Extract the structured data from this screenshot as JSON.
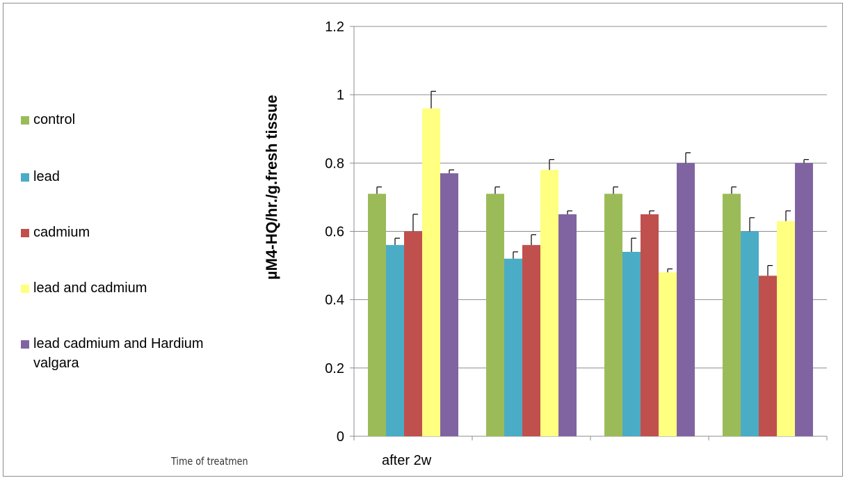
{
  "chart_data": {
    "type": "bar",
    "categories": [
      "after 2w",
      "",
      "",
      ""
    ],
    "series": [
      {
        "name": "control",
        "color": "#9bbb59",
        "values": [
          0.71,
          0.71,
          0.71,
          0.71
        ],
        "errors": [
          0.02,
          0.02,
          0.02,
          0.02
        ]
      },
      {
        "name": "lead",
        "color": "#4bacc6",
        "values": [
          0.56,
          0.52,
          0.54,
          0.6
        ],
        "errors": [
          0.02,
          0.02,
          0.04,
          0.04
        ]
      },
      {
        "name": "cadmium",
        "color": "#c0504d",
        "values": [
          0.6,
          0.56,
          0.65,
          0.47
        ],
        "errors": [
          0.05,
          0.03,
          0.01,
          0.03
        ]
      },
      {
        "name": "lead and cadmium",
        "color": "#ffff80",
        "values": [
          0.96,
          0.78,
          0.48,
          0.63
        ],
        "errors": [
          0.05,
          0.03,
          0.01,
          0.03
        ]
      },
      {
        "name": "lead cadmium and Hardium valgara",
        "color": "#8064a2",
        "values": [
          0.77,
          0.65,
          0.8,
          0.8
        ],
        "errors": [
          0.01,
          0.01,
          0.03,
          0.01
        ]
      }
    ],
    "ylabel": "µM4-HQ/hr./g.fresh tissue",
    "xlabel": "Time of treatmen",
    "ylim": [
      0,
      1.2
    ],
    "yticks": [
      "0",
      "0.2",
      "0.4",
      "0.6",
      "0.8",
      "1",
      "1.2"
    ],
    "grid": true,
    "legend_position": "left"
  }
}
